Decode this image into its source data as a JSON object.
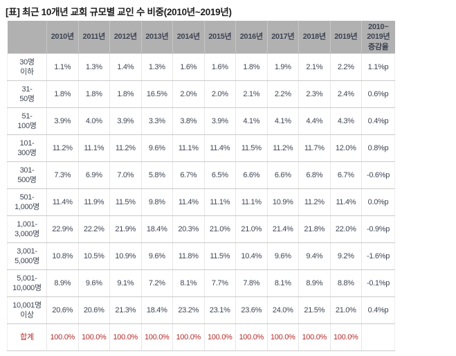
{
  "title": "[표] 최근 10개년 교회 규모별 교인 수 비중(2010년~2019년)",
  "colors": {
    "header_bg": "#b1b1b1",
    "body_text": "#3e4553",
    "total_text": "#b52c2c"
  },
  "chart_data": {
    "type": "table",
    "title": "[표] 최근 10개년 교회 규모별 교인 수 비중(2010년~2019년)",
    "columns": [
      "",
      "2010년",
      "2011년",
      "2012년",
      "2013년",
      "2014년",
      "2015년",
      "2016년",
      "2017년",
      "2018년",
      "2019년",
      "2010~2019년 증감율"
    ],
    "rows": [
      [
        "30명 이하",
        "1.1%",
        "1.3%",
        "1.4%",
        "1.3%",
        "1.6%",
        "1.6%",
        "1.8%",
        "1.9%",
        "2.1%",
        "2.2%",
        "1.1%p"
      ],
      [
        "31-50명",
        "1.8%",
        "1.8%",
        "1.8%",
        "16.5%",
        "2.0%",
        "2.0%",
        "2.1%",
        "2.2%",
        "2.3%",
        "2.4%",
        "0.6%p"
      ],
      [
        "51-100명",
        "3.9%",
        "4.0%",
        "3.9%",
        "3.3%",
        "3.8%",
        "3.9%",
        "4.1%",
        "4.1%",
        "4.4%",
        "4.3%",
        "0.4%p"
      ],
      [
        "101-300명",
        "11.2%",
        "11.1%",
        "11.2%",
        "9.6%",
        "11.1%",
        "11.4%",
        "11.5%",
        "11.2%",
        "11.7%",
        "12.0%",
        "0.8%p"
      ],
      [
        "301-500명",
        "7.3%",
        "6.9%",
        "7.0%",
        "5.8%",
        "6.7%",
        "6.5%",
        "6.6%",
        "6.6%",
        "6.8%",
        "6.7%",
        "-0.6%p"
      ],
      [
        "501-1,000명",
        "11.4%",
        "11.9%",
        "11.5%",
        "9.8%",
        "11.4%",
        "11.1%",
        "11.1%",
        "10.9%",
        "11.2%",
        "11.4%",
        "0.0%p"
      ],
      [
        "1,001-3,000명",
        "22.9%",
        "22.2%",
        "21.9%",
        "18.4%",
        "20.3%",
        "21.0%",
        "21.0%",
        "21.4%",
        "21.8%",
        "22.0%",
        "-0.9%p"
      ],
      [
        "3,001-5,000명",
        "10.8%",
        "10.5%",
        "10.9%",
        "9.6%",
        "11.8%",
        "11.5%",
        "10.4%",
        "9.6%",
        "9.4%",
        "9.2%",
        "-1.6%p"
      ],
      [
        "5,001-10,000명",
        "8.9%",
        "9.6%",
        "9.1%",
        "7.2%",
        "8.1%",
        "7.7%",
        "7.8%",
        "8.1%",
        "8.9%",
        "8.8%",
        "-0.1%p"
      ],
      [
        "10,001명 이상",
        "20.6%",
        "20.6%",
        "21.3%",
        "18.4%",
        "23.2%",
        "23.1%",
        "23.6%",
        "24.0%",
        "21.5%",
        "21.0%",
        "0.4%p"
      ],
      [
        "합계",
        "100.0%",
        "100.0%",
        "100.0%",
        "100.0%",
        "100.0%",
        "100.0%",
        "100.0%",
        "100.0%",
        "100.0%",
        "100.0%",
        ""
      ]
    ]
  },
  "table": {
    "header": {
      "corner": "",
      "years": [
        "2010년",
        "2011년",
        "2012년",
        "2013년",
        "2014년",
        "2015년",
        "2016년",
        "2017년",
        "2018년",
        "2019년"
      ],
      "change_label": "2010~\n2019년\n증감율"
    },
    "rows": [
      {
        "label": "30명\n이하",
        "values": [
          "1.1%",
          "1.3%",
          "1.4%",
          "1.3%",
          "1.6%",
          "1.6%",
          "1.8%",
          "1.9%",
          "2.1%",
          "2.2%"
        ],
        "change": "1.1%p",
        "total": false
      },
      {
        "label": "31-\n50명",
        "values": [
          "1.8%",
          "1.8%",
          "1.8%",
          "16.5%",
          "2.0%",
          "2.0%",
          "2.1%",
          "2.2%",
          "2.3%",
          "2.4%"
        ],
        "change": "0.6%p",
        "total": false
      },
      {
        "label": "51-\n100명",
        "values": [
          "3.9%",
          "4.0%",
          "3.9%",
          "3.3%",
          "3.8%",
          "3.9%",
          "4.1%",
          "4.1%",
          "4.4%",
          "4.3%"
        ],
        "change": "0.4%p",
        "total": false
      },
      {
        "label": "101-\n300명",
        "values": [
          "11.2%",
          "11.1%",
          "11.2%",
          "9.6%",
          "11.1%",
          "11.4%",
          "11.5%",
          "11.2%",
          "11.7%",
          "12.0%"
        ],
        "change": "0.8%p",
        "total": false
      },
      {
        "label": "301-\n500명",
        "values": [
          "7.3%",
          "6.9%",
          "7.0%",
          "5.8%",
          "6.7%",
          "6.5%",
          "6.6%",
          "6.6%",
          "6.8%",
          "6.7%"
        ],
        "change": "-0.6%p",
        "total": false
      },
      {
        "label": "501-\n1,000명",
        "values": [
          "11.4%",
          "11.9%",
          "11.5%",
          "9.8%",
          "11.4%",
          "11.1%",
          "11.1%",
          "10.9%",
          "11.2%",
          "11.4%"
        ],
        "change": "0.0%p",
        "total": false
      },
      {
        "label": "1,001-\n3,000명",
        "values": [
          "22.9%",
          "22.2%",
          "21.9%",
          "18.4%",
          "20.3%",
          "21.0%",
          "21.0%",
          "21.4%",
          "21.8%",
          "22.0%"
        ],
        "change": "-0.9%p",
        "total": false
      },
      {
        "label": "3,001-\n5,000명",
        "values": [
          "10.8%",
          "10.5%",
          "10.9%",
          "9.6%",
          "11.8%",
          "11.5%",
          "10.4%",
          "9.6%",
          "9.4%",
          "9.2%"
        ],
        "change": "-1.6%p",
        "total": false
      },
      {
        "label": "5,001-\n10,000명",
        "values": [
          "8.9%",
          "9.6%",
          "9.1%",
          "7.2%",
          "8.1%",
          "7.7%",
          "7.8%",
          "8.1%",
          "8.9%",
          "8.8%"
        ],
        "change": "-0.1%p",
        "total": false
      },
      {
        "label": "10,001명\n이상",
        "values": [
          "20.6%",
          "20.6%",
          "21.3%",
          "18.4%",
          "23.2%",
          "23.1%",
          "23.6%",
          "24.0%",
          "21.5%",
          "21.0%"
        ],
        "change": "0.4%p",
        "total": false
      },
      {
        "label": "합계",
        "values": [
          "100.0%",
          "100.0%",
          "100.0%",
          "100.0%",
          "100.0%",
          "100.0%",
          "100.0%",
          "100.0%",
          "100.0%",
          "100.0%"
        ],
        "change": "",
        "total": true
      }
    ]
  }
}
